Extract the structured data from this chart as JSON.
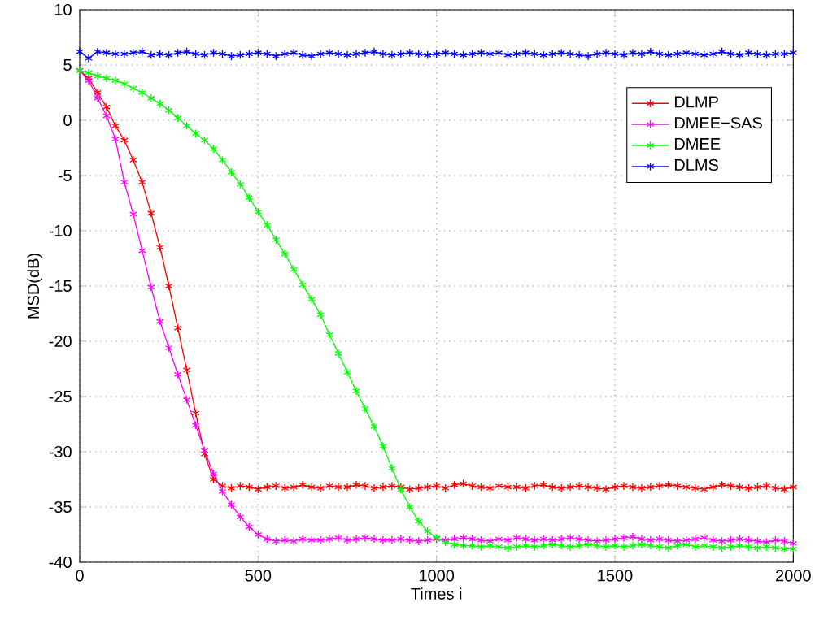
{
  "chart_data": {
    "type": "line",
    "xlabel": "Times i",
    "ylabel": "MSD(dB)",
    "x": [
      0,
      25,
      50,
      75,
      100,
      125,
      150,
      175,
      200,
      225,
      250,
      275,
      300,
      325,
      350,
      375,
      400,
      425,
      450,
      475,
      500,
      525,
      550,
      575,
      600,
      625,
      650,
      675,
      700,
      725,
      750,
      775,
      800,
      825,
      850,
      875,
      900,
      925,
      950,
      975,
      1000,
      1025,
      1050,
      1075,
      1100,
      1125,
      1150,
      1175,
      1200,
      1225,
      1250,
      1275,
      1300,
      1325,
      1350,
      1375,
      1400,
      1425,
      1450,
      1475,
      1500,
      1525,
      1550,
      1575,
      1600,
      1625,
      1650,
      1675,
      1700,
      1725,
      1750,
      1775,
      1800,
      1825,
      1850,
      1875,
      1900,
      1925,
      1950,
      1975,
      2000
    ],
    "series": [
      {
        "name": "DLMP",
        "color": "#ff0000",
        "values": [
          4.5,
          3.8,
          2.5,
          1.2,
          -0.5,
          -1.8,
          -3.6,
          -5.6,
          -8.4,
          -11.5,
          -15,
          -18.8,
          -22.6,
          -26.5,
          -30.2,
          -32.5,
          -33.1,
          -33.3,
          -33.1,
          -33.2,
          -33.4,
          -33.2,
          -33.1,
          -33.3,
          -33.2,
          -33.0,
          -33.2,
          -33.3,
          -33.1,
          -33.2,
          -33.2,
          -33.0,
          -33.1,
          -33.3,
          -33.2,
          -33.1,
          -33.2,
          -33.4,
          -33.3,
          -33.2,
          -33.1,
          -33.3,
          -33.0,
          -32.9,
          -33.1,
          -33.2,
          -33.3,
          -33.1,
          -33.2,
          -33.2,
          -33.3,
          -33.1,
          -33.0,
          -33.2,
          -33.3,
          -33.2,
          -33.1,
          -33.2,
          -33.3,
          -33.4,
          -33.2,
          -33.1,
          -33.2,
          -33.3,
          -33.2,
          -33.1,
          -33.0,
          -33.1,
          -33.2,
          -33.3,
          -33.4,
          -33.2,
          -33.0,
          -33.1,
          -33.2,
          -33.3,
          -33.2,
          -33.1,
          -33.3,
          -33.4,
          -33.2
        ]
      },
      {
        "name": "DMEE−SAS",
        "color": "#ff00ff",
        "values": [
          4.5,
          3.6,
          2.0,
          0.4,
          -1.7,
          -5.6,
          -8.5,
          -11.8,
          -15.1,
          -18.2,
          -20.6,
          -23.0,
          -25.3,
          -27.6,
          -29.9,
          -32.0,
          -33.6,
          -34.8,
          -35.9,
          -36.8,
          -37.5,
          -37.9,
          -38.1,
          -38.0,
          -38.1,
          -37.9,
          -38.0,
          -38.0,
          -37.9,
          -37.8,
          -38.0,
          -37.9,
          -37.8,
          -37.9,
          -38.0,
          -38.0,
          -37.9,
          -38.0,
          -38.1,
          -38.0,
          -37.9,
          -38.0,
          -37.9,
          -37.8,
          -37.9,
          -38.0,
          -38.1,
          -37.9,
          -38.0,
          -37.8,
          -37.9,
          -38.0,
          -37.9,
          -38.0,
          -37.9,
          -37.8,
          -37.9,
          -38.0,
          -38.1,
          -38.0,
          -37.9,
          -37.8,
          -37.7,
          -37.9,
          -38.0,
          -37.9,
          -38.0,
          -38.1,
          -38.0,
          -37.9,
          -37.8,
          -38.0,
          -38.1,
          -38.0,
          -37.9,
          -38.0,
          -38.1,
          -38.2,
          -38.0,
          -38.1,
          -38.3
        ]
      },
      {
        "name": "DMEE",
        "color": "#00ff00",
        "values": [
          4.5,
          4.3,
          4.0,
          3.8,
          3.6,
          3.3,
          2.9,
          2.5,
          2.0,
          1.5,
          0.9,
          0.2,
          -0.5,
          -1.2,
          -1.8,
          -2.6,
          -3.6,
          -4.7,
          -5.8,
          -7.0,
          -8.3,
          -9.5,
          -10.8,
          -12.1,
          -13.5,
          -14.9,
          -16.2,
          -17.6,
          -19.4,
          -21.1,
          -22.8,
          -24.5,
          -26.1,
          -27.7,
          -29.5,
          -31.5,
          -33.4,
          -35.0,
          -36.3,
          -37.2,
          -37.8,
          -38.2,
          -38.4,
          -38.5,
          -38.5,
          -38.6,
          -38.5,
          -38.6,
          -38.7,
          -38.6,
          -38.5,
          -38.6,
          -38.5,
          -38.4,
          -38.5,
          -38.6,
          -38.5,
          -38.4,
          -38.5,
          -38.6,
          -38.5,
          -38.6,
          -38.5,
          -38.4,
          -38.5,
          -38.6,
          -38.7,
          -38.5,
          -38.4,
          -38.6,
          -38.5,
          -38.6,
          -38.7,
          -38.6,
          -38.5,
          -38.6,
          -38.7,
          -38.6,
          -38.7,
          -38.8,
          -38.8
        ]
      },
      {
        "name": "DLMS",
        "color": "#0000ff",
        "values": [
          6.2,
          5.6,
          6.2,
          6.1,
          6.0,
          6.0,
          6.1,
          6.2,
          5.9,
          6.0,
          5.9,
          6.1,
          6.2,
          6.0,
          5.9,
          6.1,
          6.0,
          5.8,
          5.9,
          6.0,
          6.1,
          6.0,
          5.8,
          6.0,
          6.1,
          5.9,
          5.8,
          6.0,
          6.1,
          6.0,
          5.9,
          6.0,
          6.1,
          6.2,
          6.0,
          5.9,
          6.0,
          6.1,
          6.0,
          5.9,
          6.0,
          6.1,
          6.0,
          5.9,
          6.0,
          6.1,
          6.0,
          6.1,
          5.9,
          6.0,
          6.1,
          6.0,
          5.9,
          6.0,
          6.1,
          6.0,
          5.9,
          5.8,
          6.0,
          6.1,
          6.0,
          5.9,
          6.1,
          6.0,
          6.2,
          6.0,
          5.9,
          6.0,
          6.1,
          6.0,
          5.9,
          6.0,
          6.2,
          6.0,
          5.9,
          6.1,
          6.0,
          5.9,
          6.0,
          6.0,
          6.1
        ]
      }
    ],
    "xlim": [
      0,
      2000
    ],
    "xticks": [
      0,
      500,
      1000,
      1500,
      2000
    ],
    "ylim": [
      -40,
      10
    ],
    "yticks": [
      -40,
      -35,
      -30,
      -25,
      -20,
      -15,
      -10,
      -5,
      0,
      5,
      10
    ],
    "grid": true,
    "legend": "top right",
    "marker": "cross",
    "line_style": "solid"
  }
}
